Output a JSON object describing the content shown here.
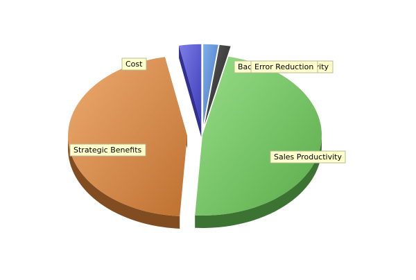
{
  "chart_data": {
    "type": "pie",
    "title": "",
    "exploded": true,
    "three_d": true,
    "slices": [
      {
        "label": "Back Office Productivity",
        "value": 2,
        "color": "#4f8fe6"
      },
      {
        "label": "Error Reduction",
        "value": 1.5,
        "color": "#222222"
      },
      {
        "label": "Sales Productivity",
        "value": 47.5,
        "color": "#6fd15a"
      },
      {
        "label": "Strategic Benefits",
        "value": 46,
        "color": "#e88a3a"
      },
      {
        "label": "Cost",
        "value": 3,
        "color": "#4a4adf"
      }
    ]
  }
}
